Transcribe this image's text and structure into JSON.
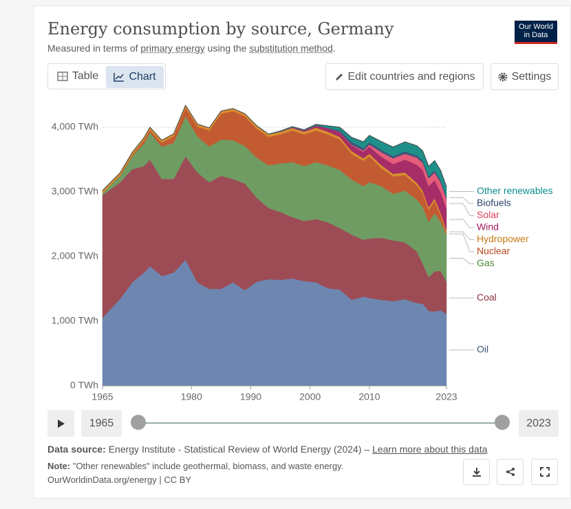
{
  "header": {
    "title": "Energy consumption by source, Germany",
    "subtitle": [
      "Measured in terms of ",
      "primary energy",
      " using the ",
      "substitution method",
      "."
    ],
    "logo": [
      "Our World",
      "in Data"
    ]
  },
  "tabs": [
    "Table",
    "Chart"
  ],
  "buttons": [
    "Edit countries and regions",
    "Settings"
  ],
  "timeline": {
    "start": "1965",
    "end": "2023"
  },
  "footer": {
    "source_label": "Data source:",
    "source": " Energy Institute - Statistical Review of World Energy (2024) – ",
    "source_link": "Learn more about this data",
    "note_label": "Note:",
    "note": " \"Other renewables\" include geothermal, biomass, and waste energy.",
    "license": "OurWorldinData.org/energy | CC BY"
  },
  "chart_data": {
    "type": "stacked-area",
    "x": [
      1965,
      1968,
      1970,
      1972,
      1973,
      1975,
      1977,
      1979,
      1981,
      1983,
      1985,
      1987,
      1989,
      1991,
      1993,
      1995,
      1997,
      1999,
      2001,
      2003,
      2005,
      2007,
      2009,
      2010,
      2012,
      2014,
      2016,
      2018,
      2019,
      2020,
      2021,
      2022,
      2023
    ],
    "xlim": [
      1965,
      2023
    ],
    "xticks": [
      1965,
      1980,
      1990,
      2000,
      2010,
      2023
    ],
    "ylim": [
      0,
      4000
    ],
    "yticks": [
      {
        "value": 0,
        "label": "0 TWh"
      },
      {
        "value": 1000,
        "label": "1,000 TWh"
      },
      {
        "value": 2000,
        "label": "2,000 TWh"
      },
      {
        "value": 3000,
        "label": "3,000 TWh"
      },
      {
        "value": 4000,
        "label": "4,000 TWh"
      }
    ],
    "grid": true,
    "series": [
      {
        "name": "Oil",
        "color": "#6d87b1",
        "label_color": "#3c5478",
        "values": [
          1050,
          1350,
          1600,
          1750,
          1850,
          1700,
          1750,
          1950,
          1600,
          1500,
          1500,
          1600,
          1480,
          1610,
          1650,
          1640,
          1660,
          1620,
          1600,
          1510,
          1490,
          1330,
          1380,
          1360,
          1330,
          1310,
          1340,
          1280,
          1270,
          1160,
          1150,
          1170,
          1110
        ]
      },
      {
        "name": "Coal",
        "color": "#9d4c56",
        "label_color": "#883039",
        "values": [
          1900,
          1800,
          1750,
          1650,
          1650,
          1500,
          1450,
          1600,
          1700,
          1650,
          1750,
          1600,
          1650,
          1300,
          1100,
          1050,
          950,
          930,
          980,
          1020,
          950,
          1010,
          880,
          920,
          960,
          940,
          880,
          800,
          620,
          520,
          620,
          610,
          500
        ]
      },
      {
        "name": "Gas",
        "color": "#6f9c62",
        "label_color": "#4c8a3a",
        "values": [
          30,
          100,
          200,
          350,
          420,
          500,
          560,
          620,
          560,
          550,
          560,
          600,
          580,
          620,
          660,
          750,
          850,
          850,
          880,
          880,
          900,
          850,
          830,
          870,
          800,
          720,
          800,
          800,
          880,
          860,
          900,
          760,
          730
        ]
      },
      {
        "name": "Nuclear",
        "color": "#c35b32",
        "label_color": "#b54614",
        "values": [
          0,
          10,
          20,
          50,
          40,
          60,
          100,
          130,
          150,
          250,
          400,
          450,
          460,
          450,
          440,
          450,
          490,
          490,
          490,
          480,
          470,
          400,
          390,
          400,
          280,
          270,
          240,
          220,
          210,
          180,
          190,
          100,
          20
        ]
      },
      {
        "name": "Hydropower",
        "color": "#d88e2e",
        "label_color": "#c77810",
        "values": [
          40,
          40,
          40,
          40,
          40,
          40,
          40,
          40,
          40,
          40,
          40,
          40,
          40,
          40,
          40,
          40,
          40,
          40,
          45,
          40,
          40,
          40,
          40,
          40,
          45,
          40,
          40,
          40,
          40,
          40,
          40,
          40,
          45
        ]
      },
      {
        "name": "Wind",
        "color": "#a62d67",
        "label_color": "#a2195b",
        "values": [
          0,
          0,
          0,
          0,
          0,
          0,
          0,
          0,
          0,
          0,
          0,
          0,
          0,
          0,
          0,
          5,
          10,
          20,
          30,
          50,
          70,
          90,
          100,
          110,
          130,
          150,
          200,
          280,
          320,
          330,
          280,
          320,
          340
        ]
      },
      {
        "name": "Solar",
        "color": "#e45d7a",
        "label_color": "#d73c50",
        "values": [
          0,
          0,
          0,
          0,
          0,
          0,
          0,
          0,
          0,
          0,
          0,
          0,
          0,
          0,
          0,
          0,
          0,
          0,
          0,
          2,
          5,
          10,
          20,
          30,
          70,
          90,
          90,
          110,
          110,
          120,
          120,
          150,
          150
        ]
      },
      {
        "name": "Biofuels",
        "color": "#3c5478",
        "label_color": "#2c4068",
        "values": [
          0,
          0,
          0,
          0,
          0,
          0,
          0,
          0,
          0,
          0,
          0,
          0,
          0,
          0,
          0,
          0,
          0,
          2,
          5,
          10,
          25,
          45,
          35,
          35,
          35,
          35,
          35,
          35,
          35,
          35,
          35,
          35,
          35
        ]
      },
      {
        "name": "Other renewables",
        "color": "#1f8f8a",
        "label_color": "#0a8c8c",
        "values": [
          0,
          0,
          0,
          0,
          0,
          0,
          0,
          0,
          0,
          0,
          0,
          0,
          0,
          5,
          5,
          8,
          10,
          10,
          15,
          30,
          50,
          70,
          100,
          110,
          130,
          140,
          150,
          150,
          150,
          150,
          150,
          150,
          150
        ]
      }
    ]
  }
}
